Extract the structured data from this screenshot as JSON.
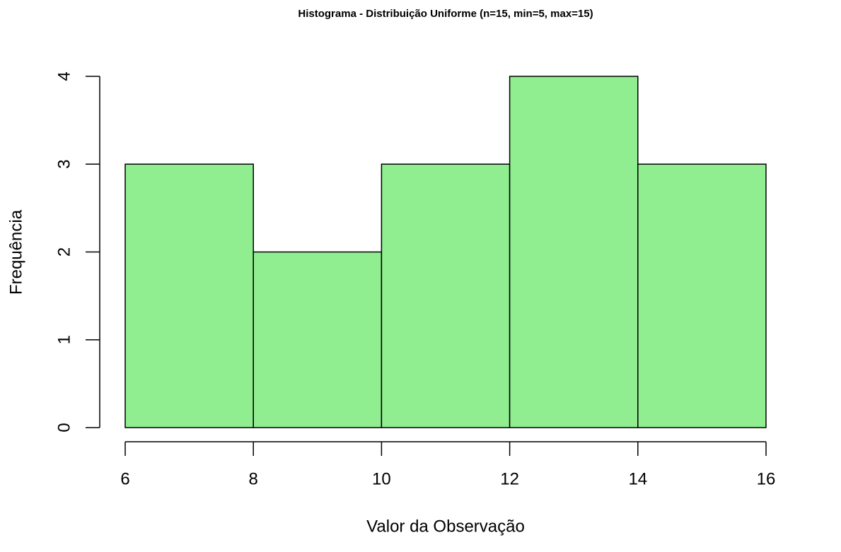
{
  "chart_data": {
    "type": "histogram",
    "title": "Histograma - Distribuição Uniforme (n=15, min=5, max=15)",
    "x_label": "Valor da Observação",
    "y_label": "Frequência",
    "bins": [
      6,
      8,
      10,
      12,
      14,
      16
    ],
    "counts": [
      3,
      2,
      3,
      4,
      3
    ],
    "color": "#90ee90",
    "xlim": [
      6,
      16
    ],
    "xticks": [
      6,
      8,
      10,
      12,
      14,
      16
    ],
    "ylim": [
      0,
      4
    ],
    "yticks": [
      0,
      1,
      2,
      3,
      4
    ],
    "grid": false
  }
}
